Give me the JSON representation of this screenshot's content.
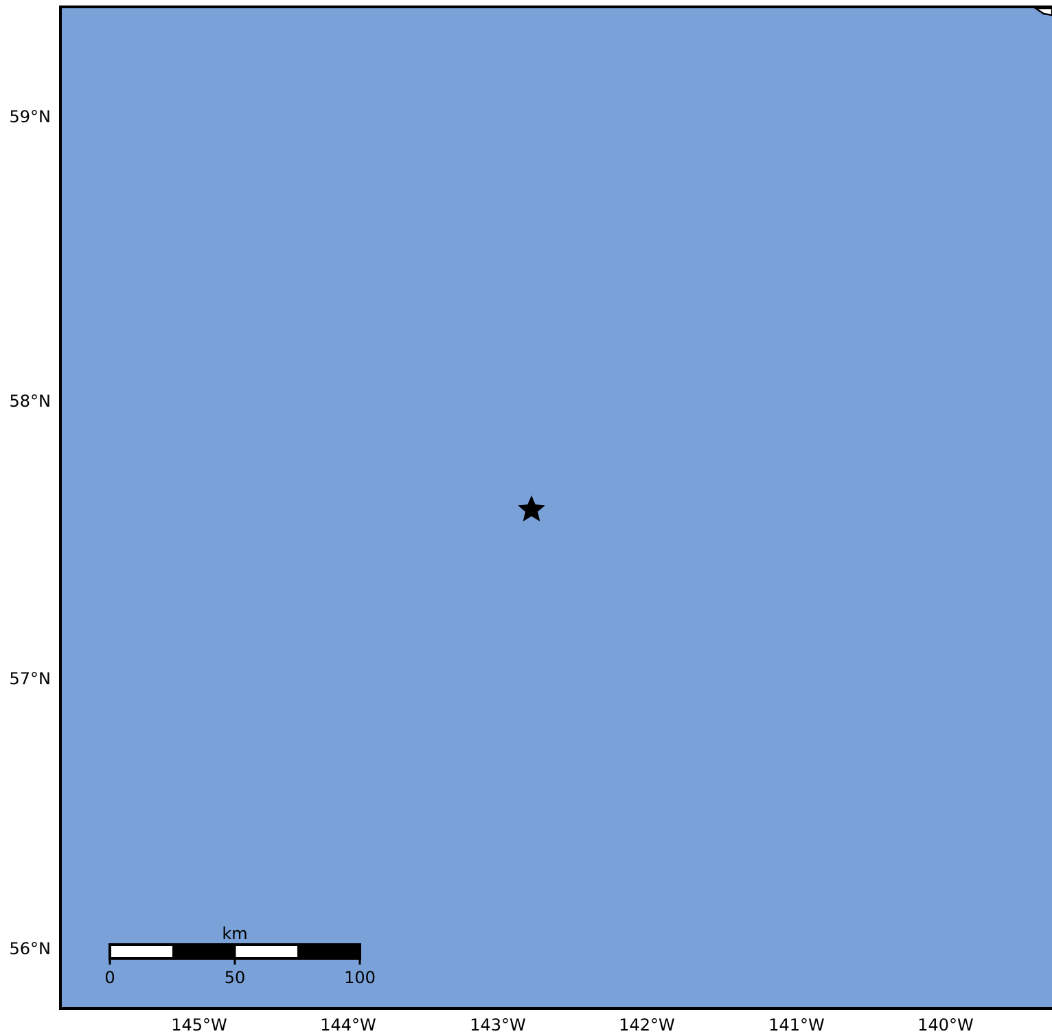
{
  "map": {
    "ocean_color": "#7ba1d9",
    "land_color": "#ffffff",
    "frame_color": "#000000",
    "lat_ticks": [
      "59°N",
      "58°N",
      "57°N",
      "56°N"
    ],
    "lon_ticks": [
      "145°W",
      "144°W",
      "143°W",
      "142°W",
      "141°W",
      "140°W"
    ],
    "marker": {
      "symbol": "star-icon",
      "color": "#000000"
    },
    "scale_bar": {
      "unit": "km",
      "labels": [
        "0",
        "50",
        "100"
      ]
    }
  }
}
